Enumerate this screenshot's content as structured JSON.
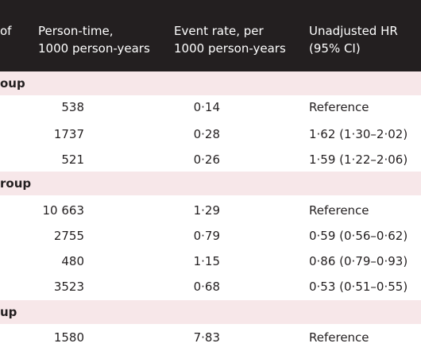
{
  "header": {
    "col0": [
      "of",
      ""
    ],
    "col1": [
      "Person-time,",
      "1000 person-years"
    ],
    "col2": [
      "Event rate, per",
      "1000 person-years"
    ],
    "col3": [
      "Unadjusted HR",
      "(95% CI)"
    ]
  },
  "groups": [
    {
      "label": "oup",
      "rows": [
        {
          "pt": "538",
          "er": "0·14",
          "hr": "Reference"
        },
        {
          "pt": "1737",
          "er": "0·28",
          "hr": "1·62 (1·30–2·02)"
        },
        {
          "pt": "521",
          "er": "0·26",
          "hr": "1·59 (1·22–2·06)"
        }
      ]
    },
    {
      "label": "roup",
      "rows": [
        {
          "pt": "10 663",
          "er": "1·29",
          "hr": "Reference"
        },
        {
          "pt": "2755",
          "er": "0·79",
          "hr": "0·59 (0·56–0·62)"
        },
        {
          "pt": "480",
          "er": "1·15",
          "hr": "0·86 (0·79–0·93)"
        },
        {
          "pt": "3523",
          "er": "0·68",
          "hr": "0·53 (0·51–0·55)"
        }
      ]
    },
    {
      "label": "up",
      "rows": [
        {
          "pt": "1580",
          "er": "7·83",
          "hr": "Reference"
        }
      ]
    }
  ]
}
